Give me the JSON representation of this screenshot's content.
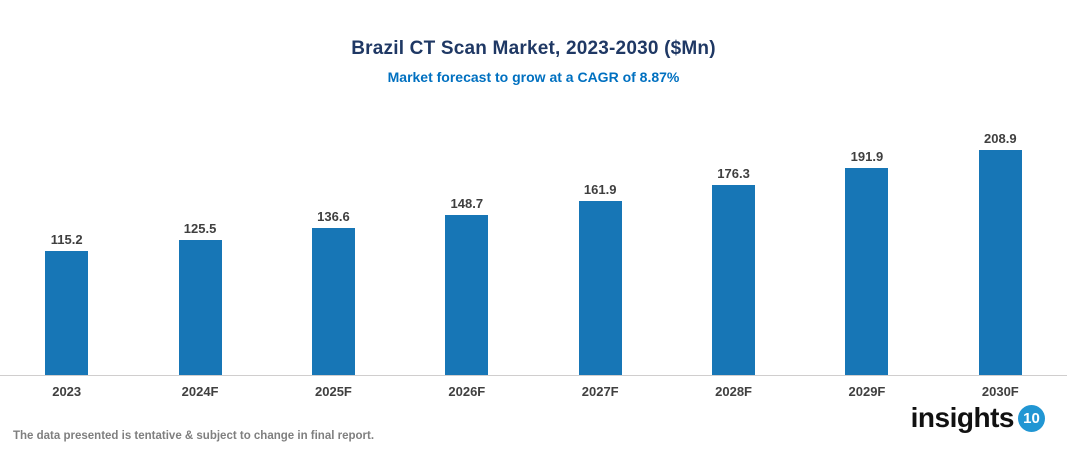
{
  "header": {
    "title": "Brazil CT Scan Market, 2023-2030 ($Mn)",
    "subtitle": "Market forecast to grow at a CAGR of 8.87%"
  },
  "chart_data": {
    "type": "bar",
    "title": "Brazil CT Scan Market, 2023-2030 ($Mn)",
    "subtitle": "Market forecast to grow at a CAGR of 8.87%",
    "categories": [
      "2023",
      "2024F",
      "2025F",
      "2026F",
      "2027F",
      "2028F",
      "2029F",
      "2030F"
    ],
    "values": [
      115.2,
      125.5,
      136.6,
      148.7,
      161.9,
      176.3,
      191.9,
      208.9
    ],
    "xlabel": "",
    "ylabel": "",
    "ylim": [
      0,
      220
    ],
    "grid": false,
    "legend": false,
    "data_labels": true,
    "bar_color": "#1776B6",
    "label_color": "#3F3F3F",
    "axis_line_color": "#D0CECE"
  },
  "footer": {
    "note": "The data presented is tentative & subject to change in final report.",
    "logo_text": "insights",
    "logo_badge": "10",
    "logo_badge_color": "#2196D3"
  }
}
